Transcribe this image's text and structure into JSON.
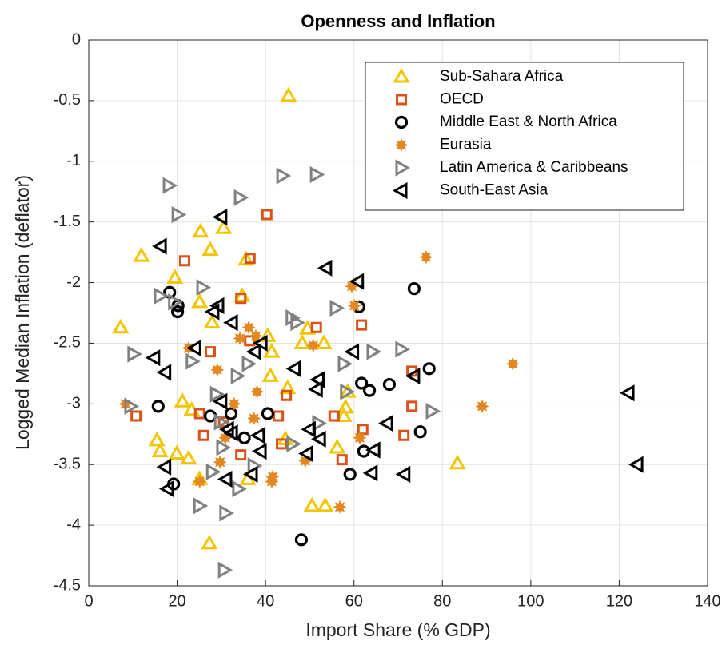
{
  "chart_data": {
    "type": "scatter",
    "title": "Openness and Inflation",
    "x_label": "Import Share (% GDP)",
    "y_label": "Logged Median Inflation (deflator)",
    "xlim": [
      0,
      140
    ],
    "xticks": [
      0,
      20,
      40,
      60,
      80,
      100,
      120,
      140
    ],
    "ylim": [
      -4.5,
      0
    ],
    "yticks": [
      -4.5,
      -4,
      -3.5,
      -3,
      -2.5,
      -2,
      -1.5,
      -1,
      -0.5,
      0
    ],
    "grid": true,
    "legend": "upper right",
    "series": [
      {
        "name": "Sub-Sahara Africa",
        "color": "#f2c500",
        "marker": "triangle-up",
        "x": [
          45.2,
          7.2,
          11.9,
          19.5,
          25.3,
          27.5,
          30.5,
          35.6,
          34.7,
          27.9,
          25.1,
          15.4,
          16.1,
          21.2,
          23.3,
          19.9,
          22.6,
          25.1,
          27.3,
          36.0,
          40.5,
          41.4,
          41.1,
          45.0,
          44.5,
          50.5,
          53.5,
          49.5,
          48.3,
          53.2,
          58.1,
          57.7,
          56.2,
          58.6,
          83.4
        ],
        "values": [
          -0.46,
          -2.37,
          -1.78,
          -1.96,
          -1.58,
          -1.73,
          -1.55,
          -1.81,
          -2.11,
          -2.33,
          -2.16,
          -3.3,
          -3.39,
          -2.98,
          -3.05,
          -3.41,
          -3.45,
          -3.62,
          -4.15,
          -3.62,
          -2.44,
          -2.57,
          -2.77,
          -2.87,
          -3.29,
          -3.84,
          -3.84,
          -2.38,
          -2.5,
          -2.5,
          -3.03,
          -3.1,
          -3.36,
          -2.9,
          -3.49
        ]
      },
      {
        "name": "OECD",
        "color": "#d95319",
        "marker": "square",
        "x": [
          40.3,
          36.5,
          21.7,
          34.4,
          51.5,
          61.7,
          27.5,
          36.4,
          44.7,
          42.9,
          10.7,
          25.1,
          26.0,
          30.5,
          34.4,
          43.6,
          55.5,
          62.0,
          73.1,
          73.1,
          71.3,
          57.3
        ],
        "values": [
          -1.44,
          -1.8,
          -1.82,
          -2.13,
          -2.37,
          -2.35,
          -2.57,
          -2.48,
          -2.93,
          -3.1,
          -3.1,
          -3.08,
          -3.26,
          -3.15,
          -3.42,
          -3.33,
          -3.1,
          -3.21,
          -2.73,
          -3.02,
          -3.26,
          -3.46
        ]
      },
      {
        "name": "Middle East & North Africa",
        "color": "#000000",
        "marker": "circle",
        "x": [
          18.3,
          20.1,
          20.2,
          61.1,
          73.6,
          15.7,
          27.5,
          32.2,
          35.2,
          40.5,
          19.2,
          61.7,
          63.5,
          68.0,
          77.0,
          75.0,
          62.2,
          59.1,
          48.1
        ],
        "values": [
          -2.08,
          -2.24,
          -2.19,
          -2.2,
          -2.05,
          -3.02,
          -3.1,
          -3.08,
          -3.28,
          -3.08,
          -3.66,
          -2.83,
          -2.89,
          -2.84,
          -2.71,
          -3.23,
          -3.39,
          -3.58,
          -4.12
        ]
      },
      {
        "name": "Eurasia",
        "color": "#e5861e",
        "marker": "star",
        "x": [
          76.3,
          95.9,
          89.0,
          59.5,
          60.1,
          50.8,
          36.2,
          37.8,
          34.2,
          29.1,
          22.6,
          38.1,
          37.4,
          8.3,
          30.9,
          29.7,
          25.1,
          41.6,
          41.4,
          49.0,
          56.8,
          61.3,
          32.9
        ],
        "values": [
          -1.79,
          -2.67,
          -3.02,
          -2.03,
          -2.19,
          -2.52,
          -2.37,
          -2.44,
          -2.46,
          -2.72,
          -2.54,
          -2.9,
          -3.12,
          -3.0,
          -3.28,
          -3.48,
          -3.64,
          -3.6,
          -3.64,
          -3.47,
          -3.85,
          -3.28,
          -3.0
        ]
      },
      {
        "name": "Latin America & Caribbeans",
        "color": "#808080",
        "marker": "triangle-right",
        "x": [
          18.1,
          20.1,
          34.2,
          43.8,
          51.4,
          25.7,
          16.1,
          19.3,
          23.3,
          10.1,
          9.4,
          45.9,
          47.0,
          55.9,
          64.2,
          70.7,
          57.7,
          58.2,
          77.6,
          28.8,
          29.7,
          30.2,
          27.9,
          25.0,
          30.9,
          30.6,
          33.8,
          37.3,
          33.5,
          36.0,
          46.1,
          51.9
        ],
        "values": [
          -1.2,
          -1.44,
          -1.3,
          -1.12,
          -1.11,
          -2.04,
          -2.11,
          -2.16,
          -2.65,
          -2.59,
          -3.02,
          -2.29,
          -2.33,
          -2.21,
          -2.57,
          -2.55,
          -2.67,
          -2.9,
          -3.06,
          -2.92,
          -3.15,
          -3.36,
          -3.56,
          -3.84,
          -3.9,
          -4.37,
          -3.7,
          -3.51,
          -2.77,
          -2.67,
          -3.33,
          -3.16
        ]
      },
      {
        "name": "South-East Asia",
        "color": "#000000",
        "marker": "triangle-left",
        "x": [
          30.0,
          16.3,
          53.7,
          60.9,
          24.1,
          28.2,
          29.3,
          32.4,
          37.6,
          39.1,
          14.8,
          17.3,
          17.3,
          17.9,
          30.0,
          31.5,
          32.4,
          31.1,
          36.9,
          38.5,
          38.9,
          46.6,
          51.6,
          52.0,
          49.4,
          50.0,
          52.3,
          59.8,
          64.0,
          64.6,
          67.5,
          71.4,
          73.6,
          122.1,
          124.1
        ],
        "values": [
          -1.46,
          -1.7,
          -1.88,
          -1.99,
          -2.54,
          -2.24,
          -2.19,
          -2.33,
          -2.57,
          -2.5,
          -2.62,
          -2.74,
          -3.52,
          -3.7,
          -2.98,
          -3.21,
          -3.24,
          -3.62,
          -3.58,
          -3.26,
          -3.39,
          -2.71,
          -2.88,
          -2.8,
          -3.41,
          -3.21,
          -3.29,
          -2.57,
          -3.57,
          -3.38,
          -3.16,
          -3.58,
          -2.77,
          -2.91,
          -3.5
        ]
      }
    ]
  }
}
